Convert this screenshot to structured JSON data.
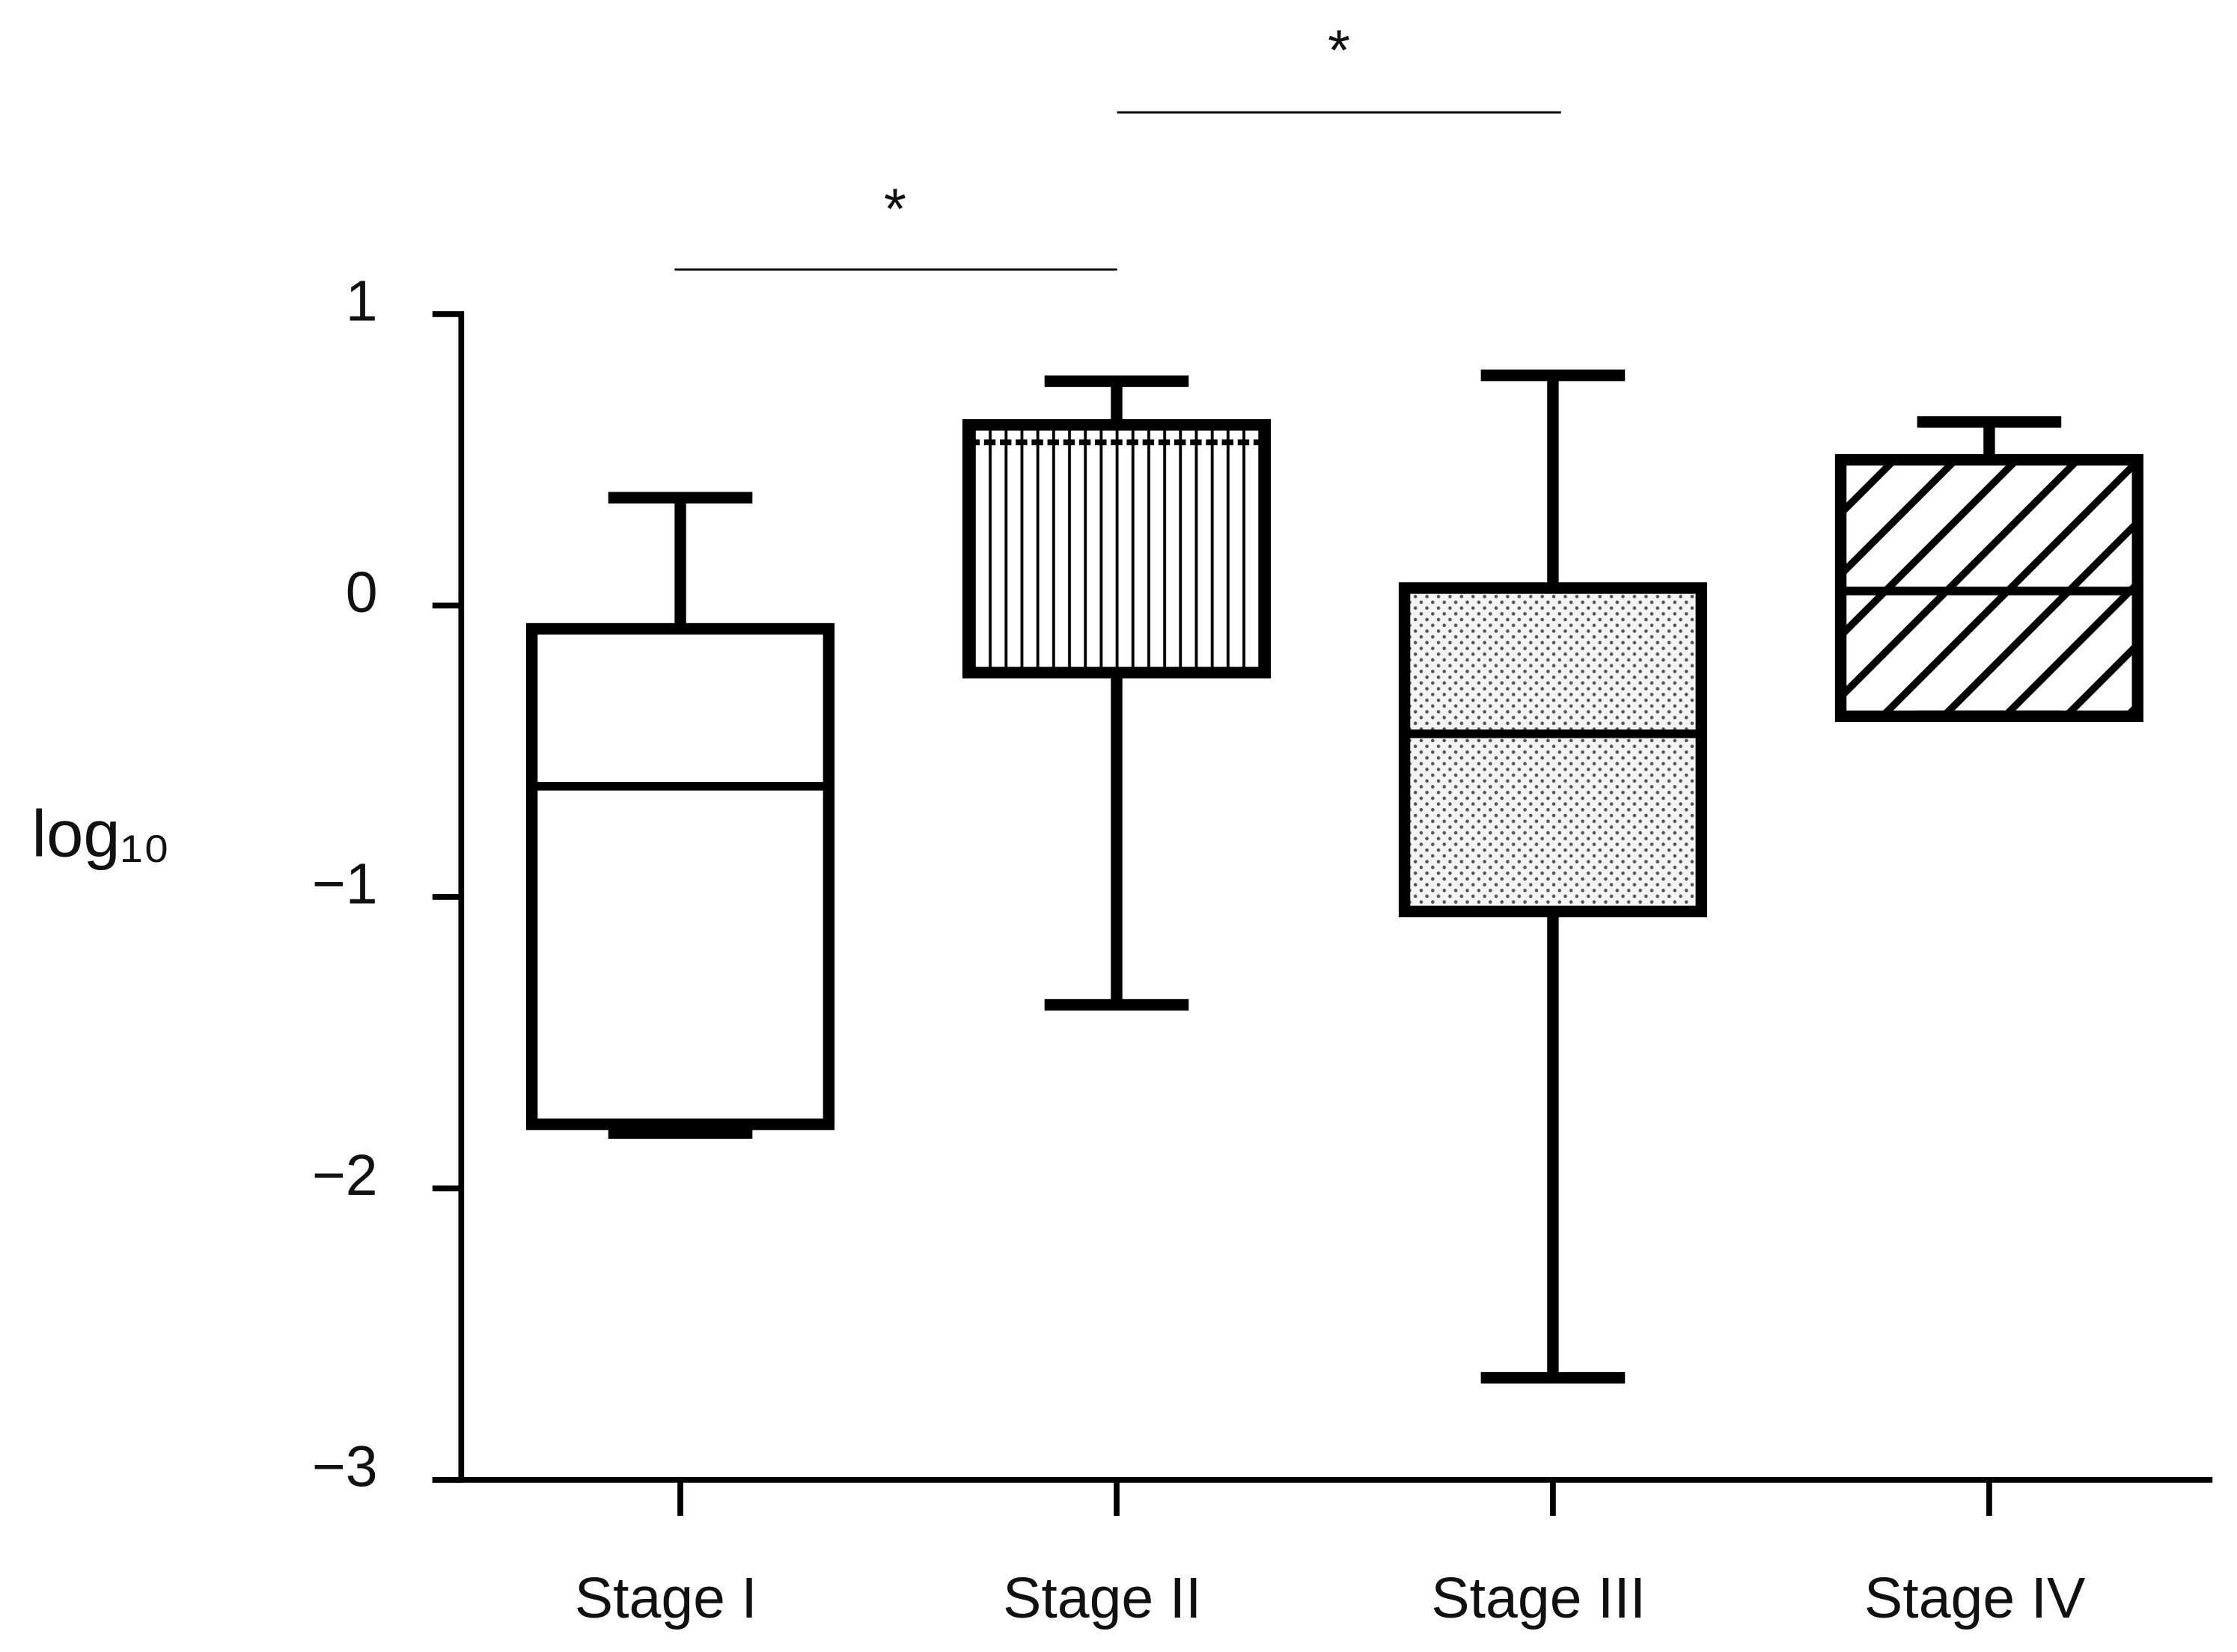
{
  "chart_data": {
    "type": "box",
    "y_label": "log₁₀",
    "categories": [
      "Stage I",
      "Stage II",
      "Stage III",
      "Stage IV"
    ],
    "boxes": [
      {
        "min": -1.81,
        "q1": -1.78,
        "median": -0.62,
        "q3": -0.08,
        "max": 0.37
      },
      {
        "min": -1.37,
        "q1": -0.23,
        "median": 0.56,
        "q3": 0.62,
        "max": 0.77
      },
      {
        "min": -2.65,
        "q1": -1.05,
        "median": -0.44,
        "q3": 0.06,
        "max": 0.79
      },
      {
        "min": -0.38,
        "q1": -0.38,
        "median": 0.05,
        "q3": 0.5,
        "max": 0.63
      }
    ],
    "patterns": [
      "none",
      "vertical",
      "dots",
      "diagonal"
    ],
    "color": "#000000",
    "ylim": [
      -3,
      1
    ],
    "yticks": [
      {
        "value": -3,
        "label": "−3"
      },
      {
        "value": -2,
        "label": "−2"
      },
      {
        "value": -1,
        "label": "−1"
      },
      0,
      1
    ],
    "annotations": [
      {
        "text": "*"
      },
      {
        "text": "*"
      }
    ]
  }
}
